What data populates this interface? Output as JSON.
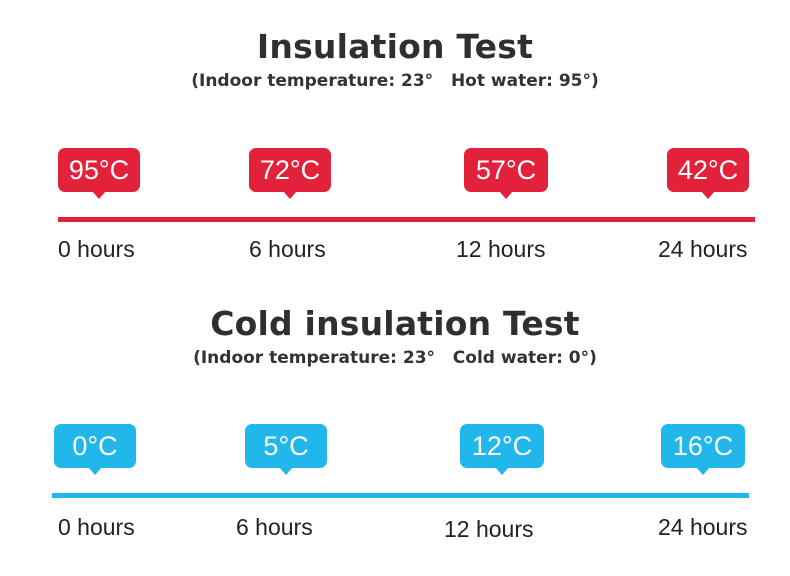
{
  "hot_test": {
    "title": "Insulation Test",
    "subtitle": "(Indoor temperature: 23°   Hot water: 95°)",
    "readings": [
      {
        "temp": "95°C",
        "time": "0 hours"
      },
      {
        "temp": "72°C",
        "time": "6 hours"
      },
      {
        "temp": "57°C",
        "time": "12 hours"
      },
      {
        "temp": "42°C",
        "time": "24 hours"
      }
    ],
    "color": "#e2213b"
  },
  "cold_test": {
    "title": "Cold insulation Test",
    "subtitle": "(Indoor temperature: 23°   Cold water: 0°)",
    "readings": [
      {
        "temp": "0°C",
        "time": "0 hours"
      },
      {
        "temp": "5°C",
        "time": "6 hours"
      },
      {
        "temp": "12°C",
        "time": "12 hours"
      },
      {
        "temp": "16°C",
        "time": "24 hours"
      }
    ],
    "color": "#22b7ea"
  }
}
